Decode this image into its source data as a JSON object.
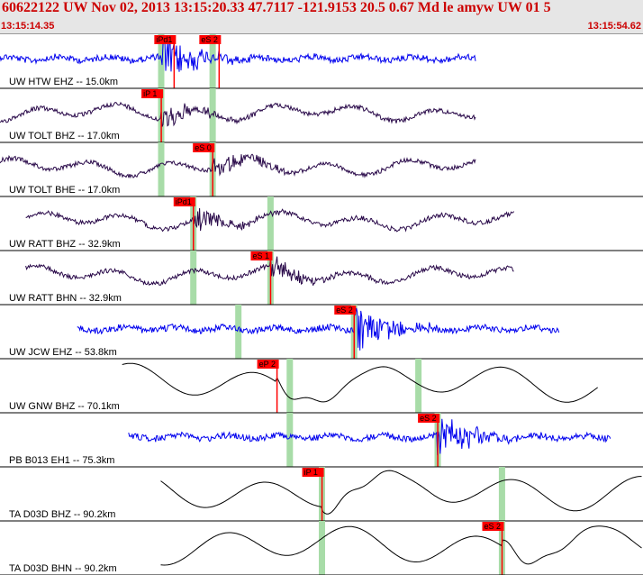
{
  "header": {
    "title": "60622122 UW Nov 02, 2013 13:15:20.33    47.7117 -121.9153 20.5 0.67 Md le amyw UW 01    5",
    "time_start": "13:15:14.35",
    "time_end": "13:15:54.62"
  },
  "colors": {
    "blue_trace": "#0000ee",
    "dark_trace": "#2a0a4a",
    "black_trace": "#000000",
    "pick_red": "#ff0000",
    "window_green": "#a8dca8"
  },
  "stations": [
    {
      "label": "UW HTW EHZ -- 15.0km",
      "color": "blue",
      "style": "noise",
      "start": 0.0,
      "end": 0.74,
      "arrival": 0.25,
      "picks": [
        {
          "label": "iPd1",
          "pos": 0.24
        },
        {
          "label": "eS 2",
          "pos": 0.31
        }
      ],
      "windows": [
        0.25,
        0.33
      ]
    },
    {
      "label": "UW TOLT BHZ -- 17.0km",
      "color": "dark",
      "style": "wave",
      "start": 0.0,
      "end": 0.74,
      "arrival": 0.25,
      "picks": [
        {
          "label": "iP 1",
          "pos": 0.22
        }
      ],
      "windows": [
        0.25,
        0.33
      ]
    },
    {
      "label": "UW TOLT BHE -- 17.0km",
      "color": "dark",
      "style": "wave",
      "start": 0.0,
      "end": 0.74,
      "arrival": 0.33,
      "picks": [
        {
          "label": "eS 0",
          "pos": 0.3
        }
      ],
      "windows": [
        0.25,
        0.33
      ]
    },
    {
      "label": "UW RATT BHZ -- 32.9km",
      "color": "dark",
      "style": "wave",
      "start": 0.04,
      "end": 0.8,
      "arrival": 0.3,
      "picks": [
        {
          "label": "iPd1",
          "pos": 0.27
        }
      ],
      "windows": [
        0.3,
        0.42
      ]
    },
    {
      "label": "UW RATT BHN -- 32.9km",
      "color": "dark",
      "style": "wave",
      "start": 0.04,
      "end": 0.8,
      "arrival": 0.42,
      "picks": [
        {
          "label": "eS 1",
          "pos": 0.39
        }
      ],
      "windows": [
        0.3,
        0.42
      ]
    },
    {
      "label": "UW JCW EHZ -- 53.8km",
      "color": "blue",
      "style": "noise",
      "start": 0.12,
      "end": 0.87,
      "arrival": 0.55,
      "picks": [
        {
          "label": "eS 2",
          "pos": 0.52
        }
      ],
      "windows": [
        0.37,
        0.55
      ]
    },
    {
      "label": "UW GNW BHZ -- 70.1km",
      "color": "black",
      "style": "smooth",
      "start": 0.19,
      "end": 0.93,
      "arrival": 0.43,
      "picks": [
        {
          "label": "eP 2",
          "pos": 0.4
        }
      ],
      "windows": [
        0.45,
        0.65
      ]
    },
    {
      "label": "PB B013 EH1 -- 75.3km",
      "color": "blue",
      "style": "noise",
      "start": 0.2,
      "end": 0.95,
      "arrival": 0.68,
      "picks": [
        {
          "label": "eS 2",
          "pos": 0.65
        }
      ],
      "windows": [
        0.45,
        0.68
      ]
    },
    {
      "label": "TA D03D BHZ -- 90.2km",
      "color": "black",
      "style": "smooth",
      "start": 0.25,
      "end": 1.0,
      "arrival": 0.5,
      "picks": [
        {
          "label": "iP 1",
          "pos": 0.47
        }
      ],
      "windows": [
        0.5,
        0.78
      ]
    },
    {
      "label": "TA D03D BHN -- 90.2km",
      "color": "black",
      "style": "smooth",
      "start": 0.25,
      "end": 1.0,
      "arrival": 0.78,
      "picks": [
        {
          "label": "eS 2",
          "pos": 0.75
        }
      ],
      "windows": [
        0.5,
        0.78
      ]
    }
  ]
}
